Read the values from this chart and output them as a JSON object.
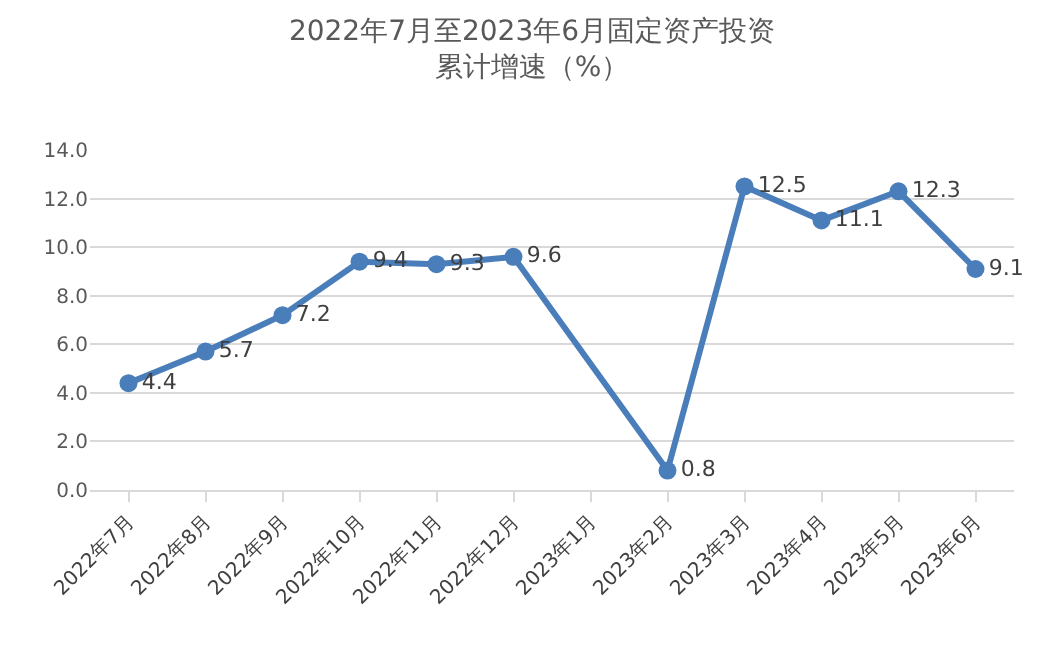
{
  "chart_data": {
    "type": "line",
    "title": "2022年7月至2023年6月固定资产投资累计增速（%）",
    "categories": [
      "2022年7月",
      "2022年8月",
      "2022年9月",
      "2022年10月",
      "2022年11月",
      "2022年12月",
      "2023年1月",
      "2023年2月",
      "2023年3月",
      "2023年4月",
      "2023年5月",
      "2023年6月"
    ],
    "series": [
      {
        "color": "#4a7ebb",
        "values": [
          4.4,
          5.7,
          7.2,
          9.4,
          9.3,
          9.6,
          null,
          0.8,
          12.5,
          11.1,
          12.3,
          9.1
        ]
      }
    ],
    "ylim": [
      0,
      14
    ],
    "yticks": [
      {
        "value": 0,
        "label": "0.0"
      },
      {
        "value": 2,
        "label": "2.0"
      },
      {
        "value": 4,
        "label": "4.0"
      },
      {
        "value": 6,
        "label": "6.0"
      },
      {
        "value": 8,
        "label": "8.0"
      },
      {
        "value": 10,
        "label": "10.0"
      },
      {
        "value": 12,
        "label": "12.0"
      },
      {
        "value": 14,
        "label": "14.0"
      }
    ],
    "grid": "y",
    "marker": "circle",
    "line_style": "solid",
    "data_labels": true
  }
}
